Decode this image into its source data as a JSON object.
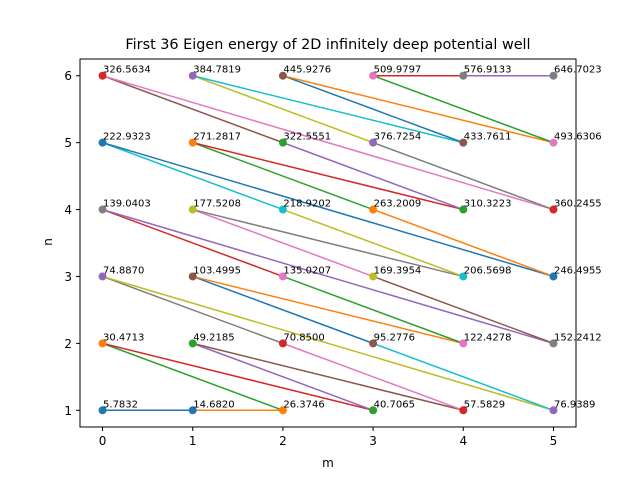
{
  "chart_data": {
    "type": "scatter",
    "title": "First 36 Eigen energy of 2D infinitely deep potential well",
    "xlabel": "m",
    "ylabel": "n",
    "xlim": [
      -0.25,
      5.25
    ],
    "ylim": [
      0.75,
      6.25
    ],
    "xticks": [
      "0",
      "1",
      "2",
      "3",
      "4",
      "5"
    ],
    "yticks": [
      "1",
      "2",
      "3",
      "4",
      "5",
      "6"
    ],
    "grid": false,
    "legend": "none",
    "colors": [
      "#1f77b4",
      "#ff7f0e",
      "#2ca02c",
      "#d62728",
      "#9467bd",
      "#8c564b",
      "#e377c2",
      "#7f7f7f",
      "#bcbd22",
      "#17becf"
    ],
    "points": [
      {
        "m": 0,
        "n": 1,
        "energy": "5.7832"
      },
      {
        "m": 1,
        "n": 1,
        "energy": "14.6820"
      },
      {
        "m": 2,
        "n": 1,
        "energy": "26.3746"
      },
      {
        "m": 0,
        "n": 2,
        "energy": "30.4713"
      },
      {
        "m": 3,
        "n": 1,
        "energy": "40.7065"
      },
      {
        "m": 1,
        "n": 2,
        "energy": "49.2185"
      },
      {
        "m": 4,
        "n": 1,
        "energy": "57.5829"
      },
      {
        "m": 2,
        "n": 2,
        "energy": "70.8500"
      },
      {
        "m": 0,
        "n": 3,
        "energy": "74.8870"
      },
      {
        "m": 5,
        "n": 1,
        "energy": "76.9389"
      },
      {
        "m": 3,
        "n": 2,
        "energy": "95.2776"
      },
      {
        "m": 1,
        "n": 3,
        "energy": "103.4995"
      },
      {
        "m": 4,
        "n": 2,
        "energy": "122.4278"
      },
      {
        "m": 2,
        "n": 3,
        "energy": "135.0207"
      },
      {
        "m": 0,
        "n": 4,
        "energy": "139.0403"
      },
      {
        "m": 5,
        "n": 2,
        "energy": "152.2412"
      },
      {
        "m": 3,
        "n": 3,
        "energy": "169.3954"
      },
      {
        "m": 1,
        "n": 4,
        "energy": "177.5208"
      },
      {
        "m": 4,
        "n": 3,
        "energy": "206.5698"
      },
      {
        "m": 2,
        "n": 4,
        "energy": "218.9202"
      },
      {
        "m": 0,
        "n": 5,
        "energy": "222.9323"
      },
      {
        "m": 5,
        "n": 3,
        "energy": "246.4955"
      },
      {
        "m": 3,
        "n": 4,
        "energy": "263.2009"
      },
      {
        "m": 1,
        "n": 5,
        "energy": "271.2817"
      },
      {
        "m": 4,
        "n": 4,
        "energy": "310.3223"
      },
      {
        "m": 2,
        "n": 5,
        "energy": "322.5551"
      },
      {
        "m": 0,
        "n": 6,
        "energy": "326.5634"
      },
      {
        "m": 5,
        "n": 4,
        "energy": "360.2455"
      },
      {
        "m": 3,
        "n": 5,
        "energy": "376.7254"
      },
      {
        "m": 1,
        "n": 6,
        "energy": "384.7819"
      },
      {
        "m": 4,
        "n": 5,
        "energy": "433.7611"
      },
      {
        "m": 2,
        "n": 6,
        "energy": "445.9276"
      },
      {
        "m": 5,
        "n": 5,
        "energy": "493.6306"
      },
      {
        "m": 3,
        "n": 6,
        "energy": "509.9797"
      },
      {
        "m": 4,
        "n": 6,
        "energy": "576.9133"
      },
      {
        "m": 5,
        "n": 6,
        "energy": "646.7023"
      }
    ]
  }
}
